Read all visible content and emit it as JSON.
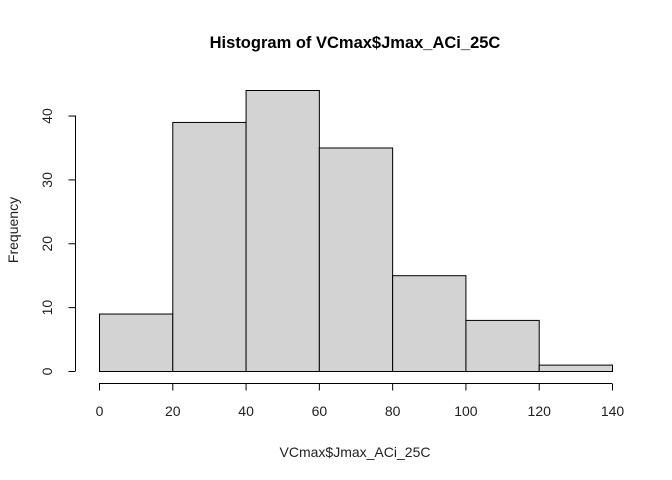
{
  "chart_data": {
    "type": "bar",
    "title": "Histogram of VCmax$Jmax_ACi_25C",
    "xlabel": "VCmax$Jmax_ACi_25C",
    "ylabel": "Frequency",
    "bins": [
      {
        "from": 0,
        "to": 20,
        "count": 9
      },
      {
        "from": 20,
        "to": 40,
        "count": 39
      },
      {
        "from": 40,
        "to": 60,
        "count": 44
      },
      {
        "from": 60,
        "to": 80,
        "count": 35
      },
      {
        "from": 80,
        "to": 100,
        "count": 15
      },
      {
        "from": 100,
        "to": 120,
        "count": 8
      },
      {
        "from": 120,
        "to": 140,
        "count": 1
      }
    ],
    "xlim": [
      0,
      140
    ],
    "ylim": [
      0,
      44
    ],
    "xticks": [
      "0",
      "20",
      "40",
      "60",
      "80",
      "100",
      "120",
      "140"
    ],
    "yticks": [
      "0",
      "10",
      "20",
      "30",
      "40"
    ],
    "bar_color": "#d3d3d3",
    "grid": false
  }
}
